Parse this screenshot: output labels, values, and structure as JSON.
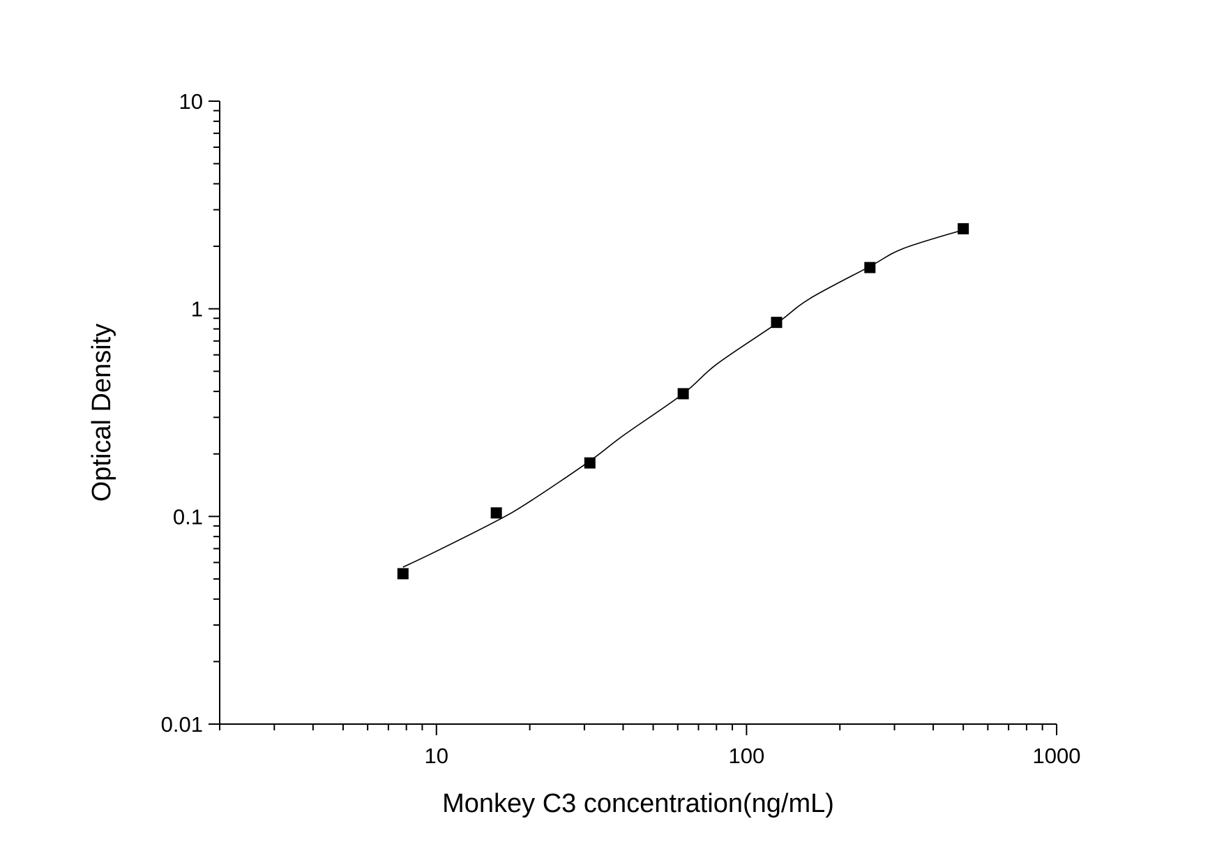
{
  "chart_data": {
    "type": "scatter",
    "title": "",
    "xlabel": "Monkey C3 concentration(ng/mL)",
    "ylabel": "Optical Density",
    "x_scale": "log",
    "y_scale": "log",
    "xlim": [
      2,
      1000
    ],
    "ylim": [
      0.01,
      10
    ],
    "x_tick_labels": [
      "10",
      "100",
      "1000"
    ],
    "y_tick_labels": [
      "0.01",
      "0.1",
      "1",
      "10"
    ],
    "grid": false,
    "legend": "none",
    "series": [
      {
        "marker": "square",
        "x": [
          7.8,
          15.6,
          31.25,
          62.5,
          125,
          250,
          500
        ],
        "y": [
          0.053,
          0.104,
          0.181,
          0.39,
          0.86,
          1.58,
          2.43
        ]
      }
    ],
    "fit_curve": {
      "style": "smooth line",
      "x": [
        7.8,
        10,
        15.6,
        20,
        31.25,
        40,
        62.5,
        80,
        125,
        160,
        250,
        320,
        500
      ],
      "y": [
        0.057,
        0.068,
        0.095,
        0.118,
        0.185,
        0.245,
        0.39,
        0.54,
        0.85,
        1.12,
        1.6,
        1.95,
        2.4
      ]
    },
    "colors": {
      "marker": "#000000",
      "line": "#000000",
      "axis": "#000000",
      "background": "#ffffff"
    }
  }
}
